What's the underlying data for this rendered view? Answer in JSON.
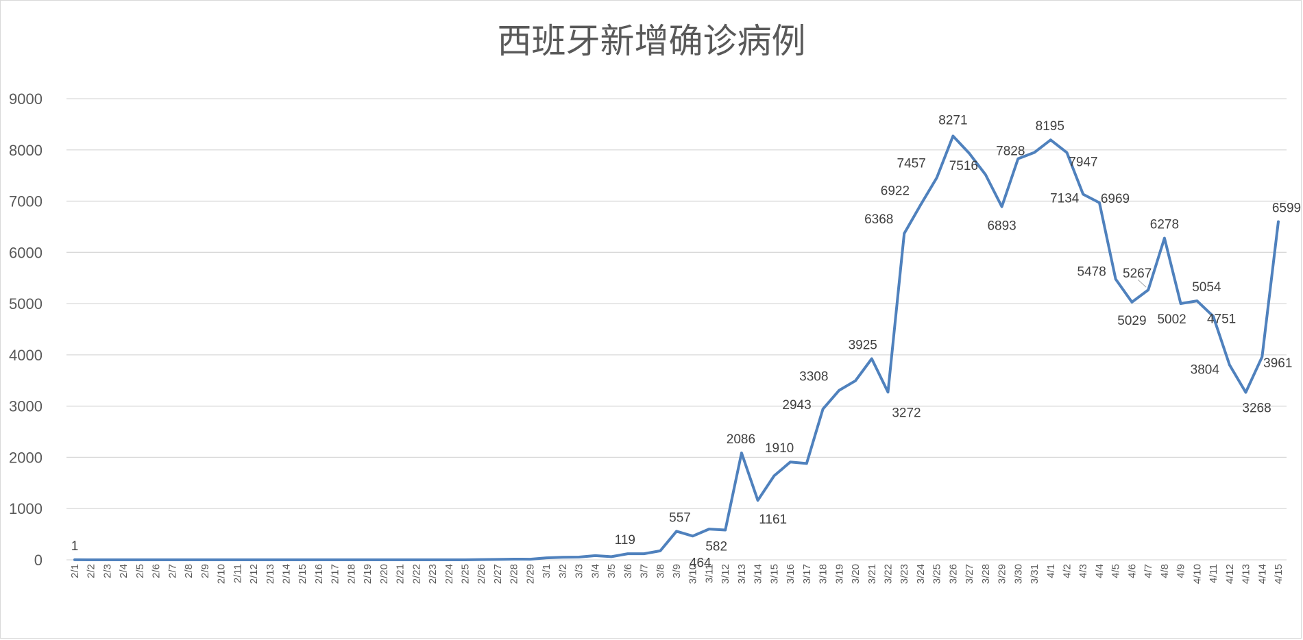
{
  "chart_data": {
    "type": "line",
    "title": "西班牙新增确诊病例",
    "xlabel": "",
    "ylabel": "",
    "ylim": [
      0,
      9000
    ],
    "yticks": [
      0,
      1000,
      2000,
      3000,
      4000,
      5000,
      6000,
      7000,
      8000,
      9000
    ],
    "grid": true,
    "legend": "none",
    "line_color": "#4f81bd",
    "categories": [
      "2/1",
      "2/2",
      "2/3",
      "2/4",
      "2/5",
      "2/6",
      "2/7",
      "2/8",
      "2/9",
      "2/10",
      "2/11",
      "2/12",
      "2/13",
      "2/14",
      "2/15",
      "2/16",
      "2/17",
      "2/18",
      "2/19",
      "2/20",
      "2/21",
      "2/22",
      "2/23",
      "2/24",
      "2/25",
      "2/26",
      "2/27",
      "2/28",
      "2/29",
      "3/1",
      "3/2",
      "3/3",
      "3/4",
      "3/5",
      "3/6",
      "3/7",
      "3/8",
      "3/9",
      "3/10",
      "3/11",
      "3/12",
      "3/13",
      "3/14",
      "3/15",
      "3/16",
      "3/17",
      "3/18",
      "3/19",
      "3/20",
      "3/21",
      "3/22",
      "3/23",
      "3/24",
      "3/25",
      "3/26",
      "3/27",
      "3/28",
      "3/29",
      "3/30",
      "3/31",
      "4/1",
      "4/2",
      "4/3",
      "4/4",
      "4/5",
      "4/6",
      "4/7",
      "4/8",
      "4/9",
      "4/10",
      "4/11",
      "4/12",
      "4/13",
      "4/14",
      "4/15"
    ],
    "values": [
      1,
      0,
      0,
      0,
      0,
      0,
      0,
      0,
      0,
      0,
      0,
      0,
      0,
      0,
      0,
      0,
      0,
      0,
      0,
      0,
      0,
      0,
      0,
      0,
      0,
      6,
      8,
      13,
      12,
      39,
      51,
      54,
      82,
      62,
      119,
      119,
      175,
      557,
      464,
      600,
      582,
      2086,
      1161,
      1640,
      1910,
      1880,
      2943,
      3308,
      3494,
      3925,
      3272,
      6368,
      6922,
      7457,
      8271,
      7933,
      7516,
      6893,
      7828,
      7950,
      8195,
      7947,
      7134,
      6969,
      5478,
      5029,
      5267,
      6278,
      5002,
      5054,
      4751,
      3804,
      3268,
      3961,
      6599
    ],
    "data_labels": [
      {
        "category": "2/1",
        "text": "1"
      },
      {
        "category": "3/6",
        "text": "119"
      },
      {
        "category": "3/9",
        "text": "557"
      },
      {
        "category": "3/10",
        "text": "464"
      },
      {
        "category": "3/12",
        "text": "582"
      },
      {
        "category": "3/13",
        "text": "2086"
      },
      {
        "category": "3/14",
        "text": "1161"
      },
      {
        "category": "3/16",
        "text": "1910"
      },
      {
        "category": "3/18",
        "text": "2943"
      },
      {
        "category": "3/19",
        "text": "3308"
      },
      {
        "category": "3/21",
        "text": "3925"
      },
      {
        "category": "3/22",
        "text": "3272"
      },
      {
        "category": "3/23",
        "text": "6368"
      },
      {
        "category": "3/24",
        "text": "6922"
      },
      {
        "category": "3/25",
        "text": "7457"
      },
      {
        "category": "3/26",
        "text": "8271"
      },
      {
        "category": "3/28",
        "text": "7516"
      },
      {
        "category": "3/29",
        "text": "6893"
      },
      {
        "category": "3/30",
        "text": "7828"
      },
      {
        "category": "4/1",
        "text": "8195"
      },
      {
        "category": "4/2",
        "text": "7947"
      },
      {
        "category": "4/3",
        "text": "7134"
      },
      {
        "category": "4/4",
        "text": "6969"
      },
      {
        "category": "4/5",
        "text": "5478"
      },
      {
        "category": "4/6",
        "text": "5029"
      },
      {
        "category": "4/7",
        "text": "5267"
      },
      {
        "category": "4/8",
        "text": "6278"
      },
      {
        "category": "4/9",
        "text": "5002"
      },
      {
        "category": "4/10",
        "text": "5054"
      },
      {
        "category": "4/11",
        "text": "4751"
      },
      {
        "category": "4/12",
        "text": "3804"
      },
      {
        "category": "4/13",
        "text": "3268"
      },
      {
        "category": "4/14",
        "text": "3961"
      },
      {
        "category": "4/15",
        "text": "6599"
      }
    ]
  }
}
